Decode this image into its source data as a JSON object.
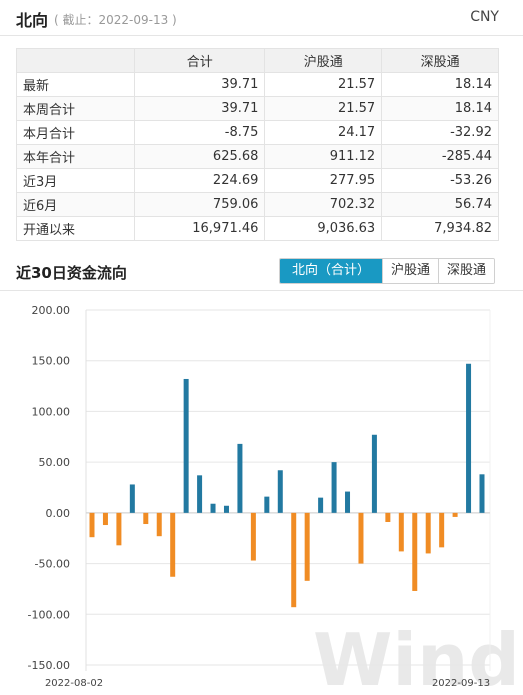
{
  "header": {
    "title": "北向",
    "as_of": "( 截止：2022-09-13 )",
    "currency": "CNY"
  },
  "table": {
    "columns": [
      "合计",
      "沪股通",
      "深股通"
    ],
    "rows": [
      {
        "label": "最新",
        "values": [
          "39.71",
          "21.57",
          "18.14"
        ]
      },
      {
        "label": "本周合计",
        "values": [
          "39.71",
          "21.57",
          "18.14"
        ]
      },
      {
        "label": "本月合计",
        "values": [
          "-8.75",
          "24.17",
          "-32.92"
        ]
      },
      {
        "label": "本年合计",
        "values": [
          "625.68",
          "911.12",
          "-285.44"
        ]
      },
      {
        "label": "近3月",
        "values": [
          "224.69",
          "277.95",
          "-53.26"
        ]
      },
      {
        "label": "近6月",
        "values": [
          "759.06",
          "702.32",
          "56.74"
        ]
      },
      {
        "label": "开通以来",
        "values": [
          "16,971.46",
          "9,036.63",
          "7,934.82"
        ]
      }
    ]
  },
  "section": {
    "title": "近30日资金流向",
    "tabs": [
      "北向（合计）",
      "沪股通",
      "深股通"
    ],
    "active_tab": 0
  },
  "chart_data": {
    "type": "bar",
    "x_start_label": "2022-08-02",
    "x_end_label": "2022-09-13",
    "ylim": [
      -150,
      200
    ],
    "yticks": [
      "200.00",
      "150.00",
      "100.00",
      "50.00",
      "0.00",
      "-50.00",
      "-100.00",
      "-150.00"
    ],
    "values": [
      -24,
      -12,
      -32,
      28,
      -11,
      -23,
      -63,
      132,
      37,
      9,
      7,
      68,
      -47,
      16,
      42,
      -93,
      -67,
      15,
      50,
      21,
      -50,
      77,
      -9,
      -38,
      -77,
      -40,
      -34,
      -4,
      147,
      38
    ],
    "positive_color": "#2279a1",
    "negative_color": "#f08c24",
    "grid": true,
    "watermark": "Wind"
  }
}
